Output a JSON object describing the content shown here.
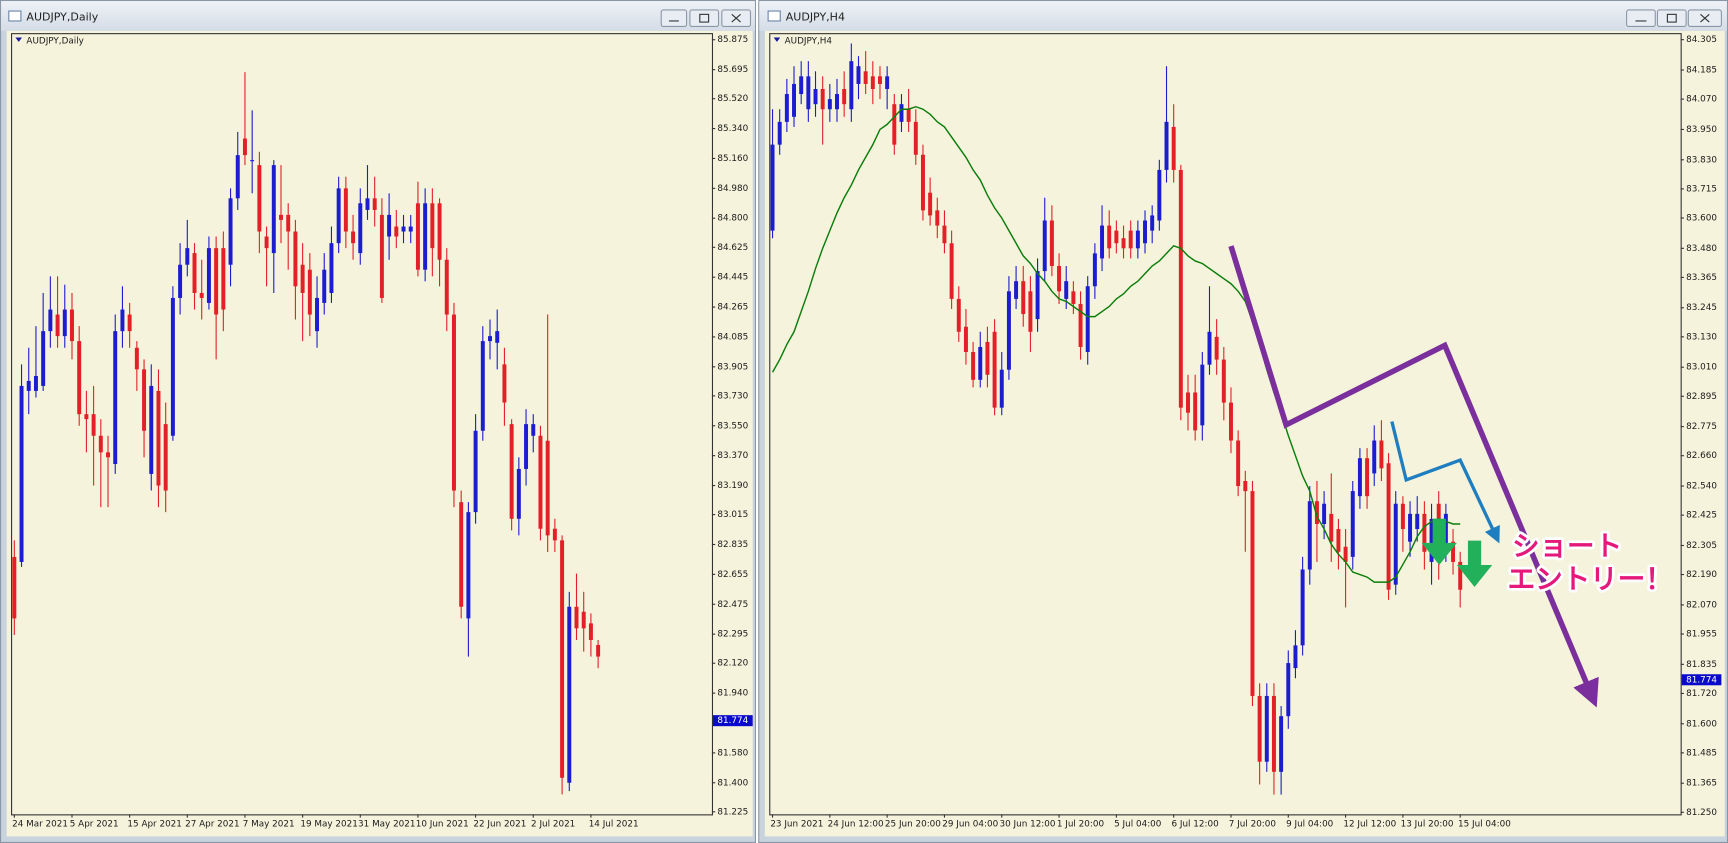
{
  "windows": [
    {
      "title": "AUDJPY,Daily"
    },
    {
      "title": "AUDJPY,H4"
    }
  ],
  "chart_data": [
    {
      "type": "candlestick",
      "title": "AUDJPY,Daily",
      "up_color": "#1c1cd0",
      "down_color": "#e32027",
      "grid": false,
      "current_price": 81.774,
      "ylim": [
        81.21,
        85.915
      ],
      "yticks": [
        85.875,
        85.695,
        {
          "value": 85.52,
          "label": "85.520"
        },
        {
          "value": 85.34,
          "label": "85.340"
        },
        {
          "value": 85.16,
          "label": "85.160"
        },
        {
          "value": 84.98,
          "label": "84.980"
        },
        {
          "value": 84.8,
          "label": "84.800"
        },
        84.625,
        84.445,
        84.265,
        84.085,
        83.905,
        {
          "value": 83.73,
          "label": "83.730"
        },
        {
          "value": 83.55,
          "label": "83.550"
        },
        {
          "value": 83.37,
          "label": "83.370"
        },
        {
          "value": 83.19,
          "label": "83.190"
        },
        83.015,
        82.835,
        82.655,
        82.475,
        82.295,
        {
          "value": 82.12,
          "label": "82.120"
        },
        {
          "value": 81.94,
          "label": "81.940"
        },
        {
          "value": 81.58,
          "label": "81.580"
        },
        {
          "value": 81.4,
          "label": "81.400"
        },
        81.225
      ],
      "categories": [
        "24 Mar 2021",
        null,
        null,
        null,
        null,
        null,
        null,
        null,
        "5 Apr 2021",
        null,
        null,
        null,
        null,
        null,
        null,
        null,
        "15 Apr 2021",
        null,
        null,
        null,
        null,
        null,
        null,
        null,
        "27 Apr 2021",
        null,
        null,
        null,
        null,
        null,
        null,
        null,
        "7 May 2021",
        null,
        null,
        null,
        null,
        null,
        null,
        null,
        "19 May 2021",
        null,
        null,
        null,
        null,
        null,
        null,
        null,
        "31 May 2021",
        null,
        null,
        null,
        null,
        null,
        null,
        null,
        "10 Jun 2021",
        null,
        null,
        null,
        null,
        null,
        null,
        null,
        "22 Jun 2021",
        null,
        null,
        null,
        null,
        null,
        null,
        null,
        "2 Jul 2021",
        null,
        null,
        null,
        null,
        null,
        null,
        null,
        "14 Jul 2021",
        null
      ],
      "open": [
        82.76,
        82.73,
        83.76,
        83.76,
        83.79,
        84.12,
        84.22,
        84.09,
        84.25,
        84.06,
        83.62,
        83.62,
        83.49,
        83.39,
        83.32,
        84.12,
        84.22,
        84.02,
        83.89,
        83.26,
        83.76,
        83.56,
        83.49,
        84.32,
        84.52,
        84.59,
        84.35,
        84.29,
        84.62,
        84.62,
        84.52,
        84.92,
        85.28,
        85.15,
        85.12,
        84.69,
        84.59,
        84.82,
        84.82,
        84.72,
        84.52,
        84.49,
        84.12,
        84.29,
        84.35,
        84.65,
        84.98,
        84.72,
        84.59,
        84.85,
        84.92,
        84.82,
        84.69,
        84.75,
        84.72,
        84.72,
        84.89,
        84.49,
        84.89,
        84.89,
        84.55,
        84.22,
        83.09,
        82.39,
        83.03,
        83.52,
        84.06,
        84.05,
        83.92,
        83.56,
        82.99,
        83.29,
        83.49,
        83.49,
        83.46,
        82.93,
        82.86,
        81.4,
        82.46,
        82.43,
        82.36,
        82.23
      ],
      "high": [
        82.86,
        83.92,
        84.02,
        84.15,
        84.35,
        84.45,
        84.45,
        84.4,
        84.35,
        84.15,
        83.76,
        83.79,
        83.59,
        83.49,
        84.22,
        84.39,
        84.29,
        84.06,
        83.95,
        83.92,
        83.89,
        83.69,
        84.39,
        84.65,
        84.79,
        84.65,
        84.55,
        84.69,
        84.69,
        84.72,
        84.98,
        85.32,
        85.68,
        85.45,
        85.2,
        84.75,
        85.15,
        85.12,
        84.89,
        84.79,
        84.65,
        84.59,
        84.45,
        84.59,
        84.75,
        85.05,
        85.05,
        84.82,
        84.98,
        85.12,
        85.05,
        84.92,
        84.95,
        84.85,
        84.82,
        84.82,
        85.02,
        84.98,
        84.98,
        84.92,
        84.62,
        84.29,
        83.16,
        83.09,
        83.62,
        84.15,
        84.19,
        84.25,
        84.02,
        83.59,
        83.36,
        83.65,
        83.62,
        83.55,
        84.22,
        82.99,
        82.89,
        82.55,
        82.66,
        82.55,
        82.42,
        82.26
      ],
      "low": [
        82.29,
        82.7,
        83.62,
        83.72,
        83.76,
        84.02,
        84.02,
        84.02,
        83.95,
        83.55,
        83.39,
        83.19,
        83.06,
        83.06,
        83.26,
        84.02,
        84.02,
        83.76,
        83.36,
        83.16,
        83.06,
        83.03,
        83.46,
        84.22,
        84.45,
        84.25,
        84.19,
        84.25,
        83.95,
        84.12,
        84.39,
        84.85,
        85.12,
        84.95,
        84.59,
        84.39,
        84.35,
        84.65,
        84.49,
        84.19,
        84.06,
        84.09,
        84.02,
        84.22,
        84.29,
        84.59,
        84.62,
        84.55,
        84.52,
        84.79,
        84.75,
        84.29,
        84.55,
        84.62,
        84.65,
        84.65,
        84.45,
        84.42,
        84.45,
        84.39,
        84.12,
        83.06,
        82.39,
        82.16,
        82.96,
        83.46,
        83.95,
        83.89,
        83.55,
        82.92,
        82.89,
        83.19,
        83.39,
        82.86,
        82.79,
        82.79,
        81.33,
        81.35,
        82.26,
        82.19,
        82.16,
        82.09
      ],
      "close": [
        82.39,
        83.79,
        83.82,
        83.85,
        84.12,
        84.25,
        84.09,
        84.25,
        84.06,
        83.62,
        83.59,
        83.49,
        83.39,
        83.36,
        84.12,
        84.25,
        84.12,
        83.89,
        83.52,
        83.79,
        83.19,
        83.16,
        84.32,
        84.52,
        84.62,
        84.35,
        84.32,
        84.62,
        84.22,
        84.25,
        84.92,
        85.18,
        85.18,
        85.15,
        84.72,
        84.62,
        85.12,
        84.79,
        84.72,
        84.39,
        84.35,
        84.22,
        84.32,
        84.49,
        84.65,
        84.98,
        84.72,
        84.65,
        84.89,
        84.92,
        84.85,
        84.32,
        84.82,
        84.69,
        84.75,
        84.75,
        84.49,
        84.89,
        84.62,
        84.55,
        84.22,
        83.16,
        82.46,
        83.03,
        83.52,
        84.06,
        84.09,
        84.12,
        83.69,
        82.99,
        83.29,
        83.56,
        83.56,
        82.93,
        82.89,
        82.86,
        81.43,
        82.46,
        82.33,
        82.33,
        82.26,
        82.16
      ]
    },
    {
      "type": "candlestick",
      "title": "AUDJPY,H4",
      "up_color": "#1c1cd0",
      "down_color": "#e32027",
      "grid": false,
      "current_price": 81.774,
      "ylim": [
        81.242,
        84.331
      ],
      "yticks": [
        84.305,
        84.185,
        {
          "value": 84.07,
          "label": "84.070"
        },
        {
          "value": 83.95,
          "label": "83.950"
        },
        {
          "value": 83.83,
          "label": "83.830"
        },
        83.715,
        {
          "value": 83.6,
          "label": "83.600"
        },
        {
          "value": 83.48,
          "label": "83.480"
        },
        83.365,
        83.245,
        {
          "value": 83.13,
          "label": "83.130"
        },
        {
          "value": 83.01,
          "label": "83.010"
        },
        82.895,
        82.775,
        {
          "value": 82.66,
          "label": "82.660"
        },
        {
          "value": 82.54,
          "label": "82.540"
        },
        82.425,
        82.305,
        {
          "value": 82.19,
          "label": "82.190"
        },
        {
          "value": 82.07,
          "label": "82.070"
        },
        81.955,
        81.835,
        {
          "value": 81.72,
          "label": "81.720"
        },
        {
          "value": 81.6,
          "label": "81.600"
        },
        81.485,
        81.365,
        {
          "value": 81.25,
          "label": "81.250"
        }
      ],
      "categories": [
        "23 Jun 2021",
        null,
        null,
        null,
        null,
        null,
        null,
        null,
        "24 Jun 12:00",
        null,
        null,
        null,
        null,
        null,
        null,
        null,
        "25 Jun 20:00",
        null,
        null,
        null,
        null,
        null,
        null,
        null,
        "29 Jun 04:00",
        null,
        null,
        null,
        null,
        null,
        null,
        null,
        "30 Jun 12:00",
        null,
        null,
        null,
        null,
        null,
        null,
        null,
        "1 Jul 20:00",
        null,
        null,
        null,
        null,
        null,
        null,
        null,
        "5 Jul 04:00",
        null,
        null,
        null,
        null,
        null,
        null,
        null,
        "6 Jul 12:00",
        null,
        null,
        null,
        null,
        null,
        null,
        null,
        "7 Jul 20:00",
        null,
        null,
        null,
        null,
        null,
        null,
        null,
        "9 Jul 04:00",
        null,
        null,
        null,
        null,
        null,
        null,
        null,
        "12 Jul 12:00",
        null,
        null,
        null,
        null,
        null,
        null,
        null,
        "13 Jul 20:00",
        null,
        null,
        null,
        null,
        null,
        null,
        null,
        "15 Jul 04:00"
      ],
      "open": [
        83.55,
        83.89,
        83.98,
        84.0,
        84.09,
        84.03,
        84.05,
        84.11,
        84.03,
        84.03,
        84.11,
        84.03,
        84.13,
        84.18,
        84.16,
        84.16,
        84.11,
        84.05,
        83.98,
        84.03,
        83.98,
        83.85,
        83.7,
        83.63,
        83.57,
        83.5,
        83.28,
        83.17,
        83.07,
        82.96,
        83.11,
        83.15,
        82.85,
        83.0,
        83.28,
        83.35,
        83.31,
        83.2,
        83.39,
        83.59,
        83.41,
        83.28,
        83.31,
        83.26,
        83.07,
        83.33,
        83.44,
        83.57,
        83.55,
        83.52,
        83.55,
        83.48,
        83.5,
        83.55,
        83.59,
        83.79,
        83.96,
        83.79,
        82.91,
        82.91,
        82.78,
        83.02,
        83.13,
        83.04,
        82.87,
        82.72,
        82.56,
        82.52,
        81.71,
        81.45,
        81.71,
        81.41,
        81.63,
        81.82,
        81.91,
        82.21,
        82.48,
        82.39,
        82.43,
        82.37,
        82.3,
        82.26,
        82.5,
        82.65,
        82.59,
        82.72,
        82.63,
        82.15,
        82.47,
        82.32,
        82.37,
        82.43,
        82.24,
        82.47,
        82.3,
        82.32,
        82.24
      ],
      "high": [
        84.03,
        84.03,
        84.15,
        84.2,
        84.22,
        84.22,
        84.18,
        84.16,
        84.13,
        84.15,
        84.18,
        84.29,
        84.24,
        84.26,
        84.22,
        84.2,
        84.2,
        84.09,
        84.09,
        84.11,
        84.03,
        83.89,
        83.76,
        83.68,
        83.63,
        83.55,
        83.33,
        83.24,
        83.11,
        83.15,
        83.17,
        83.2,
        83.07,
        83.37,
        83.41,
        83.41,
        83.37,
        83.44,
        83.68,
        83.65,
        83.46,
        83.41,
        83.35,
        83.31,
        83.37,
        83.5,
        83.65,
        83.63,
        83.59,
        83.57,
        83.59,
        83.59,
        83.63,
        83.65,
        83.83,
        84.2,
        84.05,
        83.81,
        82.98,
        82.98,
        83.07,
        83.33,
        83.2,
        83.09,
        82.93,
        82.76,
        82.6,
        82.56,
        81.76,
        81.76,
        81.76,
        81.67,
        81.89,
        81.97,
        82.26,
        82.54,
        82.56,
        82.52,
        82.59,
        82.41,
        82.37,
        82.56,
        82.69,
        82.69,
        82.78,
        82.8,
        82.67,
        82.52,
        82.5,
        82.48,
        82.5,
        82.48,
        82.47,
        82.52,
        82.47,
        82.37,
        82.28
      ],
      "low": [
        83.52,
        83.85,
        83.94,
        83.96,
        84.05,
        83.98,
        84.0,
        83.89,
        83.98,
        83.98,
        84.0,
        83.98,
        84.07,
        84.09,
        84.05,
        84.07,
        84.03,
        83.85,
        83.94,
        83.94,
        83.81,
        83.59,
        83.57,
        83.52,
        83.46,
        83.24,
        83.11,
        83.02,
        82.93,
        82.93,
        82.93,
        82.82,
        82.82,
        82.96,
        83.24,
        83.17,
        83.07,
        83.15,
        83.35,
        83.37,
        83.26,
        83.24,
        83.22,
        83.04,
        83.02,
        83.28,
        83.39,
        83.44,
        83.46,
        83.44,
        83.44,
        83.44,
        83.46,
        83.5,
        83.55,
        83.74,
        83.74,
        82.8,
        82.76,
        82.72,
        82.72,
        82.98,
        82.98,
        82.8,
        82.67,
        82.5,
        82.28,
        81.67,
        81.36,
        81.41,
        81.32,
        81.32,
        81.58,
        81.78,
        81.87,
        82.15,
        82.24,
        82.33,
        82.24,
        82.21,
        82.06,
        82.21,
        82.45,
        82.45,
        82.54,
        82.56,
        82.09,
        82.11,
        82.28,
        82.26,
        82.32,
        82.21,
        82.15,
        82.17,
        82.24,
        82.19,
        82.06
      ],
      "close": [
        83.89,
        83.98,
        84.09,
        84.13,
        84.16,
        84.16,
        84.11,
        84.03,
        84.07,
        84.09,
        84.05,
        84.22,
        84.2,
        84.13,
        84.11,
        84.13,
        84.16,
        83.89,
        84.05,
        83.98,
        83.85,
        83.63,
        83.61,
        83.57,
        83.5,
        83.28,
        83.15,
        83.07,
        82.96,
        83.09,
        82.98,
        82.85,
        83.0,
        83.31,
        83.35,
        83.22,
        83.15,
        83.39,
        83.59,
        83.41,
        83.31,
        83.35,
        83.26,
        83.09,
        83.33,
        83.46,
        83.57,
        83.48,
        83.5,
        83.48,
        83.48,
        83.55,
        83.59,
        83.61,
        83.79,
        83.98,
        83.79,
        82.85,
        82.83,
        82.76,
        83.02,
        83.15,
        83.04,
        82.87,
        82.72,
        82.54,
        82.52,
        81.71,
        81.45,
        81.71,
        81.41,
        81.63,
        81.84,
        81.91,
        82.21,
        82.48,
        82.39,
        82.47,
        82.32,
        82.28,
        82.24,
        82.52,
        82.65,
        82.5,
        82.72,
        82.61,
        82.13,
        82.47,
        82.37,
        82.43,
        82.43,
        82.28,
        82.41,
        82.24,
        82.43,
        82.24,
        82.13
      ],
      "ma": {
        "color": "#0a7d0a",
        "values": [
          82.99,
          83.04,
          83.1,
          83.15,
          83.23,
          83.31,
          83.4,
          83.48,
          83.55,
          83.62,
          83.68,
          83.73,
          83.79,
          83.84,
          83.89,
          83.95,
          83.97,
          84.0,
          84.03,
          84.03,
          84.04,
          84.03,
          84.01,
          83.98,
          83.96,
          83.92,
          83.88,
          83.84,
          83.79,
          83.75,
          83.69,
          83.64,
          83.6,
          83.55,
          83.5,
          83.45,
          83.42,
          83.38,
          83.35,
          83.31,
          83.28,
          83.27,
          83.25,
          83.23,
          83.21,
          83.21,
          83.23,
          83.25,
          83.28,
          83.3,
          83.33,
          83.35,
          83.38,
          83.41,
          83.43,
          83.46,
          83.49,
          83.48,
          83.45,
          83.43,
          83.42,
          83.4,
          83.38,
          83.36,
          83.34,
          83.31,
          83.27,
          83.19,
          83.1,
          83.0,
          82.91,
          82.83,
          82.74,
          82.66,
          82.58,
          82.52,
          82.42,
          82.37,
          82.31,
          82.27,
          82.24,
          82.2,
          82.19,
          82.18,
          82.16,
          82.16,
          82.16,
          82.18,
          82.23,
          82.28,
          82.34,
          82.38,
          82.4,
          82.41,
          82.4,
          82.39,
          82.39
        ]
      },
      "annotations": [
        "ショート",
        "エントリー！"
      ]
    }
  ]
}
